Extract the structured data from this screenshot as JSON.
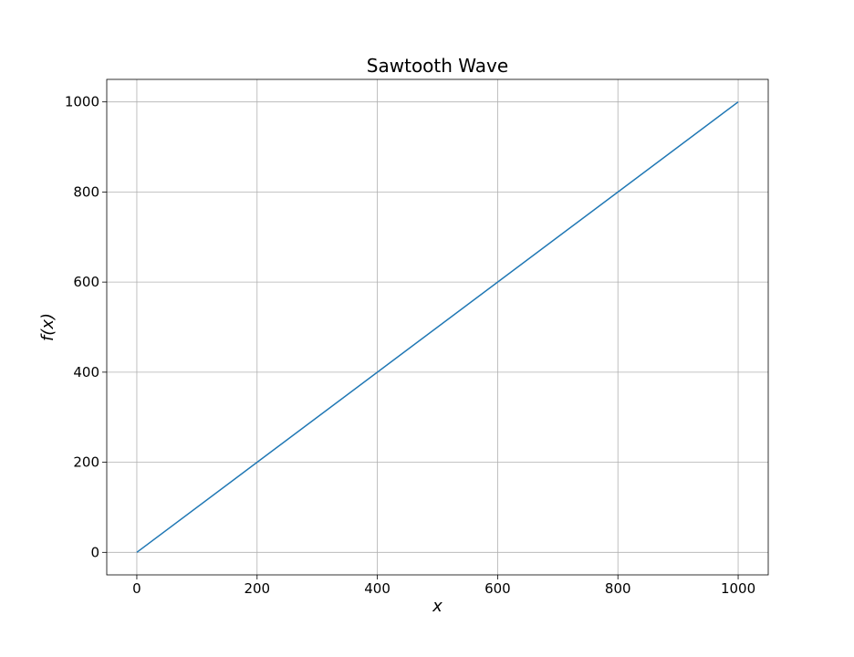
{
  "chart_data": {
    "type": "line",
    "title": "Sawtooth Wave",
    "xlabel": "x",
    "ylabel": "f(x)",
    "xlim": [
      -50,
      1050
    ],
    "ylim": [
      -50,
      1050
    ],
    "xticks": [
      0,
      200,
      400,
      600,
      800,
      1000
    ],
    "yticks": [
      0,
      200,
      400,
      600,
      800,
      1000
    ],
    "grid": true,
    "series": [
      {
        "color": "#1f77b4",
        "x": [
          0,
          1000
        ],
        "y": [
          0,
          1000
        ]
      }
    ]
  }
}
